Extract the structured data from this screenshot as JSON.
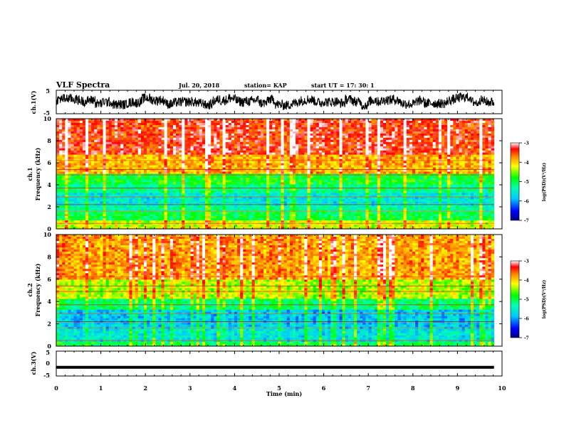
{
  "header": {
    "title": "VLF Spectra",
    "date": "Jul. 20, 2018",
    "station": "station= KAP",
    "start": "start  UT =   17: 30: 1"
  },
  "chart_data": [
    {
      "type": "line",
      "ylabel": "ch.1(V)",
      "ylim": [
        -5,
        5
      ],
      "yticks": [
        "5",
        "-5"
      ],
      "xlim": [
        0,
        10
      ],
      "description_series": "noisy voltage trace oscillating roughly between -3 and +3 V",
      "color": "#000000"
    },
    {
      "type": "heatmap",
      "ylabel": "ch.1 Frequency (kHz)",
      "ylim": [
        0,
        10
      ],
      "yticks": [
        "0",
        "2",
        "4",
        "6",
        "8",
        "10"
      ],
      "xlim": [
        0,
        10
      ],
      "bands": [
        {
          "f_from": 0,
          "f_to": 0.7,
          "log_psd": -4.3
        },
        {
          "f_from": 0.7,
          "f_to": 1.5,
          "log_psd": -5.0
        },
        {
          "f_from": 1.5,
          "f_to": 2.2,
          "log_psd": -5.3
        },
        {
          "f_from": 2.2,
          "f_to": 3.2,
          "log_psd": -5.6
        },
        {
          "f_from": 3.2,
          "f_to": 4.0,
          "log_psd": -5.2
        },
        {
          "f_from": 4.0,
          "f_to": 5.0,
          "log_psd": -4.9
        },
        {
          "f_from": 5.0,
          "f_to": 6.8,
          "log_psd": -3.9
        },
        {
          "f_from": 6.8,
          "f_to": 10,
          "log_psd": -3.4
        }
      ],
      "colorbar": {
        "label": "log(PSD)(V²/Hz)",
        "range": [
          -7,
          -3
        ],
        "ticks": [
          "-3",
          "-4",
          "-5",
          "-6",
          "-7"
        ]
      }
    },
    {
      "type": "heatmap",
      "ylabel": "ch.2 Frequency (kHz)",
      "ylim": [
        0,
        10
      ],
      "yticks": [
        "0",
        "2",
        "4",
        "6",
        "8",
        "10"
      ],
      "xlim": [
        0,
        10
      ],
      "bands": [
        {
          "f_from": 0,
          "f_to": 0.4,
          "log_psd": -5.0
        },
        {
          "f_from": 0.4,
          "f_to": 1.5,
          "log_psd": -5.6
        },
        {
          "f_from": 1.5,
          "f_to": 3.2,
          "log_psd": -5.8
        },
        {
          "f_from": 3.2,
          "f_to": 4.2,
          "log_psd": -5.1
        },
        {
          "f_from": 4.2,
          "f_to": 6.0,
          "log_psd": -4.4
        },
        {
          "f_from": 6.0,
          "f_to": 10,
          "log_psd": -3.8
        }
      ],
      "colorbar": {
        "label": "log(PSD)(V²/Hz)",
        "range": [
          -7,
          -3
        ],
        "ticks": [
          "-3",
          "-4",
          "-5",
          "-6",
          "-7"
        ]
      }
    },
    {
      "type": "line",
      "ylabel": "ch.3(V)",
      "ylim": [
        -5,
        5
      ],
      "yticks": [
        "5",
        "0",
        "-5"
      ],
      "xlim": [
        0,
        10
      ],
      "constant_value": -1.5,
      "color": "#000000"
    }
  ],
  "xaxis": {
    "label": "Time (min)",
    "ticks": [
      "0",
      "1",
      "2",
      "3",
      "4",
      "5",
      "6",
      "7",
      "8",
      "9",
      "10"
    ],
    "data_end": 9.82
  }
}
